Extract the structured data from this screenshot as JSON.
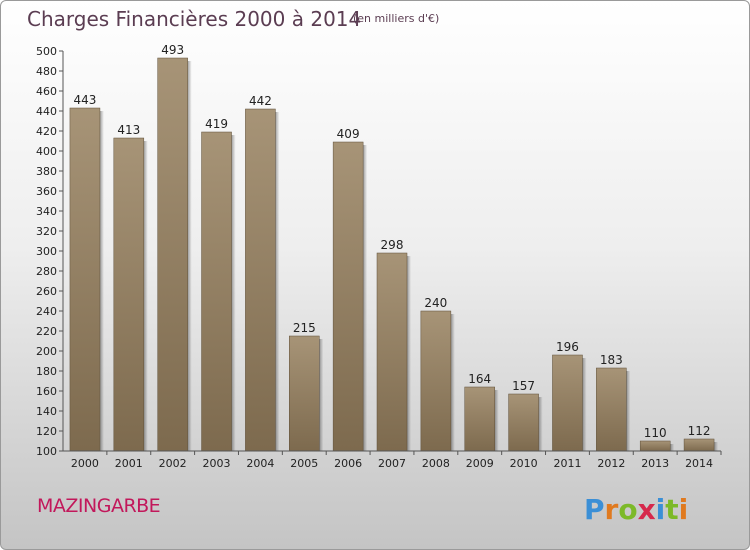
{
  "chart_title": "Charges Financières 2000 à 2014",
  "chart_subtitle": "(en milliers d'€)",
  "city": "MAZINGARBE",
  "logo_text": "Proxiti",
  "colors": {
    "bar_top": "#a79477",
    "bar_bottom": "#7d6a4e",
    "title": "#5b3d52",
    "city": "#c2185b"
  },
  "chart_data": {
    "type": "bar",
    "title": "Charges Financières 2000 à 2014",
    "subtitle": "(en milliers d'€)",
    "categories": [
      "2000",
      "2001",
      "2002",
      "2003",
      "2004",
      "2005",
      "2006",
      "2007",
      "2008",
      "2009",
      "2010",
      "2011",
      "2012",
      "2013",
      "2014"
    ],
    "values": [
      443,
      413,
      493,
      419,
      442,
      215,
      409,
      298,
      240,
      164,
      157,
      196,
      183,
      110,
      112
    ],
    "ylim": [
      100,
      500
    ],
    "yticks": [
      100,
      120,
      140,
      160,
      180,
      200,
      220,
      240,
      260,
      280,
      300,
      320,
      340,
      360,
      380,
      400,
      420,
      440,
      460,
      480,
      500
    ],
    "grid": false,
    "data_labels": true,
    "xlabel": "",
    "ylabel": ""
  }
}
